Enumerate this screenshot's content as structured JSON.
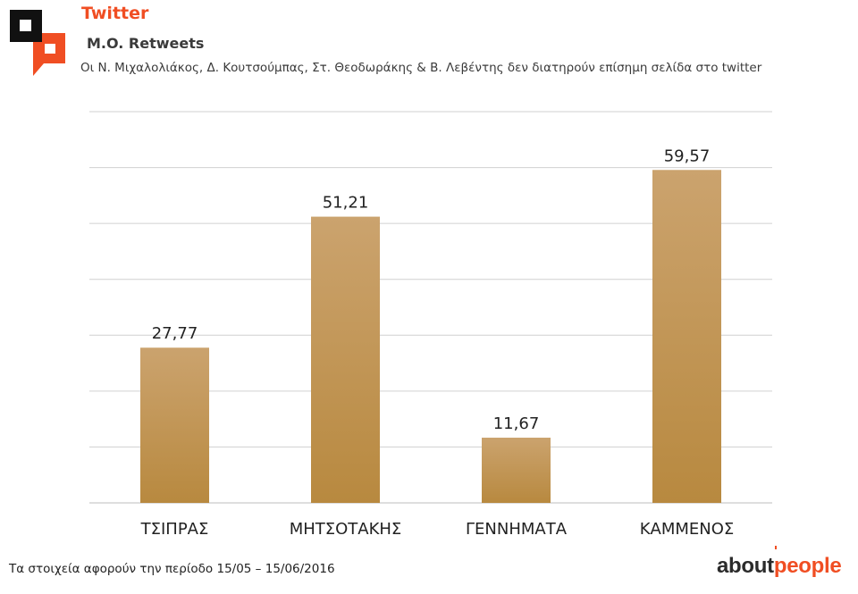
{
  "header": {
    "platform": "Twitter",
    "metric": "M.O. Retweets",
    "note": "Οι Ν. Μιχαλολιάκος, Δ. Κουτσούμπας, Στ. Θεοδωράκης & Β. Λεβέντης δεν διατηρούν επίσημη σελίδα στο twitter"
  },
  "colors": {
    "accent": "#f04e23",
    "logo_dark": "#111111",
    "bar_top": "#cba36e",
    "bar_bottom": "#b8893f",
    "grid": "#d0d0d0"
  },
  "chart_data": {
    "type": "bar",
    "title": "M.O. Retweets",
    "categories": [
      "ΤΣΙΠΡΑΣ",
      "ΜΗΤΣΟΤΑΚΗΣ",
      "ΓΕΝΝΗΜΑΤΑ",
      "ΚΑΜΜΕΝΟΣ"
    ],
    "values": [
      27.77,
      51.21,
      11.67,
      59.57
    ],
    "value_labels": [
      "27,77",
      "51,21",
      "11,67",
      "59,57"
    ],
    "ylim": [
      0,
      70
    ],
    "grid": true,
    "y_tick_labels_shown": false,
    "legend": "none"
  },
  "footer": {
    "note": "Τα στοιχεία αφορούν την περίοδο 15/05 – 15/06/2016",
    "brand_part1": "about",
    "brand_part2": "people"
  }
}
